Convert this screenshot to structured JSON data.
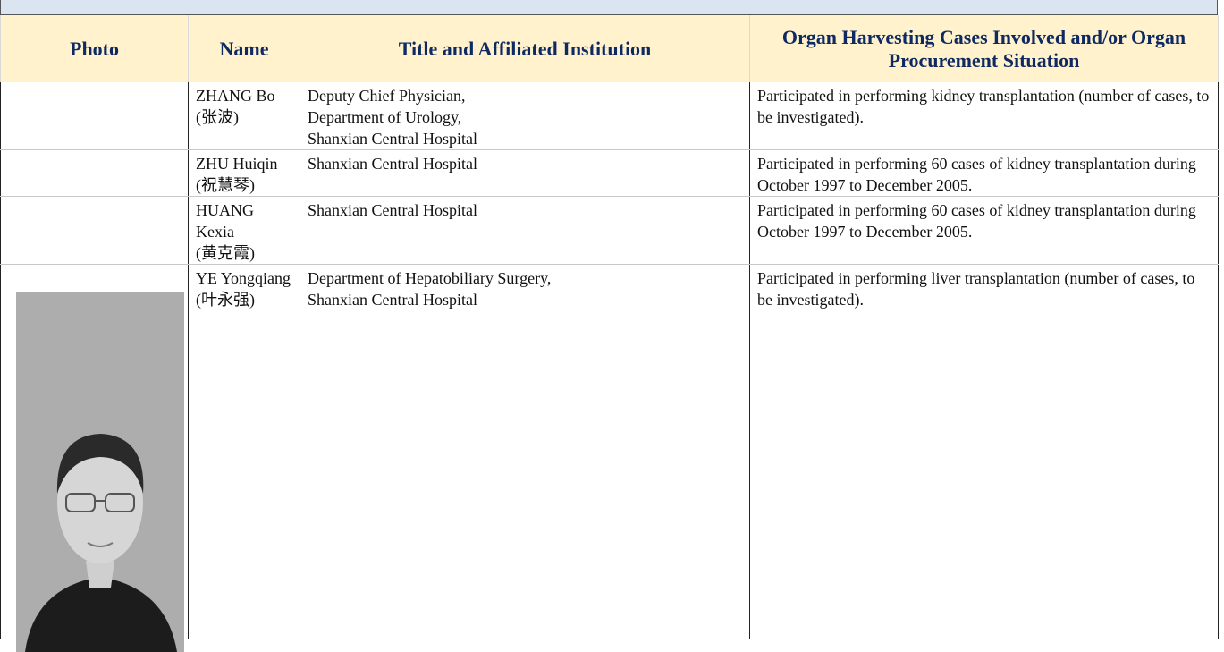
{
  "header": {
    "columns": [
      "Photo",
      "Name",
      "Title and Affiliated Institution",
      "Organ Harvesting Cases Involved and/or Organ Procurement Situation"
    ]
  },
  "table": {
    "rows": [
      {
        "name": "ZHANG Bo",
        "chinese_name": "(张波)",
        "title_lines": [
          "Deputy Chief Physician,",
          "Department of Urology,",
          "Shanxian Central Hospital"
        ],
        "cases": "Participated in performing kidney transplantation (number of cases, to be investigated)."
      },
      {
        "name": "ZHU Huiqin",
        "chinese_name": "(祝慧琴)",
        "title_lines": [
          "Shanxian Central Hospital"
        ],
        "cases": "Participated in performing 60 cases of kidney transplantation during October 1997 to December 2005."
      },
      {
        "name": "HUANG Kexia",
        "chinese_name": "(黄克霞)",
        "title_lines": [
          "Shanxian Central Hospital"
        ],
        "cases": "Participated in performing 60 cases of kidney transplantation during October 1997 to December 2005."
      },
      {
        "name": "YE Yongqiang",
        "chinese_name": "(叶永强)",
        "title_lines": [
          "Department of Hepatobiliary Surgery,",
          "Shanxian Central Hospital"
        ],
        "cases": "Participated in performing liver transplantation (number of cases, to be investigated)."
      }
    ]
  }
}
